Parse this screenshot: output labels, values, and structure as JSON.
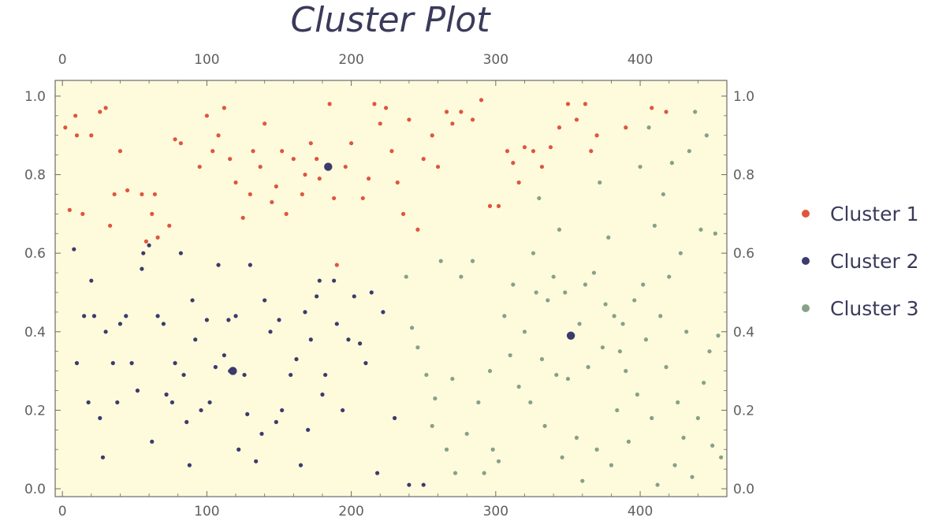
{
  "chart_data": {
    "type": "scatter",
    "title": "Cluster Plot",
    "xlabel": "",
    "ylabel": "",
    "xlim": [
      -5,
      460
    ],
    "ylim": [
      -0.02,
      1.04
    ],
    "x_ticks": [
      0,
      100,
      200,
      300,
      400
    ],
    "y_ticks": [
      "0.0",
      "0.2",
      "0.4",
      "0.6",
      "0.8",
      "1.0"
    ],
    "x_ticks_top": [
      0,
      100,
      200,
      300,
      400
    ],
    "y_ticks_right": [
      "0.0",
      "0.2",
      "0.4",
      "0.6",
      "0.8",
      "1.0"
    ],
    "grid": false,
    "legend_position": "right",
    "background_color": "#fdfbdc",
    "series": [
      {
        "name": "Cluster 1",
        "color": "#e0553f",
        "points": [
          [
            2,
            0.92
          ],
          [
            5,
            0.71
          ],
          [
            9,
            0.95
          ],
          [
            10,
            0.9
          ],
          [
            14,
            0.7
          ],
          [
            20,
            0.9
          ],
          [
            26,
            0.96
          ],
          [
            30,
            0.97
          ],
          [
            33,
            0.67
          ],
          [
            36,
            0.75
          ],
          [
            40,
            0.86
          ],
          [
            45,
            0.76
          ],
          [
            55,
            0.75
          ],
          [
            58,
            0.63
          ],
          [
            62,
            0.7
          ],
          [
            64,
            0.75
          ],
          [
            66,
            0.64
          ],
          [
            74,
            0.67
          ],
          [
            78,
            0.89
          ],
          [
            82,
            0.88
          ],
          [
            95,
            0.82
          ],
          [
            100,
            0.95
          ],
          [
            104,
            0.86
          ],
          [
            108,
            0.9
          ],
          [
            112,
            0.97
          ],
          [
            116,
            0.84
          ],
          [
            120,
            0.78
          ],
          [
            125,
            0.69
          ],
          [
            130,
            0.75
          ],
          [
            132,
            0.86
          ],
          [
            137,
            0.82
          ],
          [
            140,
            0.93
          ],
          [
            145,
            0.73
          ],
          [
            148,
            0.77
          ],
          [
            152,
            0.86
          ],
          [
            155,
            0.7
          ],
          [
            160,
            0.84
          ],
          [
            166,
            0.75
          ],
          [
            168,
            0.8
          ],
          [
            172,
            0.88
          ],
          [
            176,
            0.84
          ],
          [
            178,
            0.79
          ],
          [
            185,
            0.98
          ],
          [
            188,
            0.74
          ],
          [
            190,
            0.57
          ],
          [
            196,
            0.82
          ],
          [
            200,
            0.88
          ],
          [
            208,
            0.74
          ],
          [
            212,
            0.79
          ],
          [
            216,
            0.98
          ],
          [
            220,
            0.93
          ],
          [
            224,
            0.97
          ],
          [
            228,
            0.86
          ],
          [
            232,
            0.78
          ],
          [
            236,
            0.7
          ],
          [
            240,
            0.94
          ],
          [
            246,
            0.66
          ],
          [
            250,
            0.84
          ],
          [
            256,
            0.9
          ],
          [
            260,
            0.82
          ],
          [
            266,
            0.96
          ],
          [
            270,
            0.93
          ],
          [
            276,
            0.96
          ],
          [
            284,
            0.94
          ],
          [
            290,
            0.99
          ],
          [
            296,
            0.72
          ],
          [
            302,
            0.72
          ],
          [
            308,
            0.86
          ],
          [
            312,
            0.83
          ],
          [
            316,
            0.78
          ],
          [
            320,
            0.87
          ],
          [
            326,
            0.86
          ],
          [
            332,
            0.82
          ],
          [
            338,
            0.87
          ],
          [
            344,
            0.92
          ],
          [
            350,
            0.98
          ],
          [
            356,
            0.94
          ],
          [
            362,
            0.98
          ],
          [
            366,
            0.86
          ],
          [
            370,
            0.9
          ],
          [
            390,
            0.92
          ],
          [
            408,
            0.97
          ],
          [
            418,
            0.96
          ]
        ]
      },
      {
        "name": "Cluster 2",
        "color": "#3b3b6d",
        "points": [
          [
            8,
            0.61
          ],
          [
            10,
            0.32
          ],
          [
            15,
            0.44
          ],
          [
            18,
            0.22
          ],
          [
            20,
            0.53
          ],
          [
            22,
            0.44
          ],
          [
            26,
            0.18
          ],
          [
            28,
            0.08
          ],
          [
            30,
            0.4
          ],
          [
            35,
            0.32
          ],
          [
            38,
            0.22
          ],
          [
            40,
            0.42
          ],
          [
            44,
            0.44
          ],
          [
            48,
            0.32
          ],
          [
            52,
            0.25
          ],
          [
            55,
            0.56
          ],
          [
            56,
            0.6
          ],
          [
            60,
            0.62
          ],
          [
            62,
            0.12
          ],
          [
            66,
            0.44
          ],
          [
            70,
            0.42
          ],
          [
            72,
            0.24
          ],
          [
            76,
            0.22
          ],
          [
            78,
            0.32
          ],
          [
            82,
            0.6
          ],
          [
            84,
            0.29
          ],
          [
            86,
            0.17
          ],
          [
            88,
            0.06
          ],
          [
            90,
            0.48
          ],
          [
            92,
            0.38
          ],
          [
            96,
            0.2
          ],
          [
            100,
            0.43
          ],
          [
            102,
            0.22
          ],
          [
            106,
            0.31
          ],
          [
            108,
            0.57
          ],
          [
            112,
            0.34
          ],
          [
            115,
            0.43
          ],
          [
            116,
            0.3
          ],
          [
            120,
            0.44
          ],
          [
            122,
            0.1
          ],
          [
            126,
            0.29
          ],
          [
            128,
            0.19
          ],
          [
            130,
            0.57
          ],
          [
            134,
            0.07
          ],
          [
            138,
            0.14
          ],
          [
            140,
            0.48
          ],
          [
            144,
            0.4
          ],
          [
            148,
            0.17
          ],
          [
            150,
            0.43
          ],
          [
            152,
            0.2
          ],
          [
            158,
            0.29
          ],
          [
            162,
            0.33
          ],
          [
            165,
            0.06
          ],
          [
            168,
            0.45
          ],
          [
            170,
            0.15
          ],
          [
            172,
            0.38
          ],
          [
            176,
            0.49
          ],
          [
            178,
            0.53
          ],
          [
            180,
            0.24
          ],
          [
            182,
            0.29
          ],
          [
            185,
            0.82
          ],
          [
            188,
            0.53
          ],
          [
            190,
            0.42
          ],
          [
            194,
            0.2
          ],
          [
            198,
            0.38
          ],
          [
            202,
            0.49
          ],
          [
            206,
            0.37
          ],
          [
            210,
            0.32
          ],
          [
            214,
            0.5
          ],
          [
            218,
            0.04
          ],
          [
            222,
            0.45
          ],
          [
            230,
            0.18
          ],
          [
            240,
            0.01
          ],
          [
            250,
            0.01
          ]
        ],
        "centers": [
          [
            118,
            0.3
          ],
          [
            184,
            0.82
          ]
        ]
      },
      {
        "name": "Cluster 3",
        "color": "#87a08a",
        "points": [
          [
            238,
            0.54
          ],
          [
            242,
            0.41
          ],
          [
            246,
            0.36
          ],
          [
            252,
            0.29
          ],
          [
            256,
            0.16
          ],
          [
            258,
            0.23
          ],
          [
            262,
            0.58
          ],
          [
            266,
            0.1
          ],
          [
            270,
            0.28
          ],
          [
            272,
            0.04
          ],
          [
            276,
            0.54
          ],
          [
            280,
            0.14
          ],
          [
            284,
            0.58
          ],
          [
            288,
            0.22
          ],
          [
            292,
            0.04
          ],
          [
            296,
            0.3
          ],
          [
            298,
            0.1
          ],
          [
            302,
            0.07
          ],
          [
            306,
            0.44
          ],
          [
            310,
            0.34
          ],
          [
            312,
            0.52
          ],
          [
            316,
            0.26
          ],
          [
            320,
            0.4
          ],
          [
            324,
            0.22
          ],
          [
            326,
            0.6
          ],
          [
            328,
            0.5
          ],
          [
            330,
            0.74
          ],
          [
            332,
            0.33
          ],
          [
            334,
            0.16
          ],
          [
            336,
            0.48
          ],
          [
            340,
            0.54
          ],
          [
            342,
            0.29
          ],
          [
            344,
            0.66
          ],
          [
            346,
            0.08
          ],
          [
            348,
            0.5
          ],
          [
            350,
            0.28
          ],
          [
            352,
            0.39
          ],
          [
            356,
            0.13
          ],
          [
            358,
            0.42
          ],
          [
            360,
            0.02
          ],
          [
            362,
            0.52
          ],
          [
            364,
            0.31
          ],
          [
            368,
            0.55
          ],
          [
            370,
            0.1
          ],
          [
            372,
            0.78
          ],
          [
            374,
            0.36
          ],
          [
            376,
            0.47
          ],
          [
            378,
            0.64
          ],
          [
            380,
            0.06
          ],
          [
            382,
            0.44
          ],
          [
            384,
            0.2
          ],
          [
            386,
            0.35
          ],
          [
            388,
            0.42
          ],
          [
            390,
            0.3
          ],
          [
            392,
            0.12
          ],
          [
            396,
            0.48
          ],
          [
            398,
            0.24
          ],
          [
            400,
            0.82
          ],
          [
            402,
            0.52
          ],
          [
            404,
            0.38
          ],
          [
            406,
            0.92
          ],
          [
            408,
            0.18
          ],
          [
            410,
            0.67
          ],
          [
            412,
            0.01
          ],
          [
            414,
            0.44
          ],
          [
            416,
            0.75
          ],
          [
            418,
            0.31
          ],
          [
            420,
            0.54
          ],
          [
            422,
            0.83
          ],
          [
            424,
            0.06
          ],
          [
            426,
            0.22
          ],
          [
            428,
            0.6
          ],
          [
            430,
            0.13
          ],
          [
            432,
            0.4
          ],
          [
            434,
            0.86
          ],
          [
            436,
            0.03
          ],
          [
            438,
            0.96
          ],
          [
            440,
            0.18
          ],
          [
            442,
            0.66
          ],
          [
            444,
            0.27
          ],
          [
            446,
            0.9
          ],
          [
            448,
            0.35
          ],
          [
            450,
            0.11
          ],
          [
            452,
            0.65
          ],
          [
            454,
            0.39
          ],
          [
            456,
            0.08
          ]
        ],
        "centers": [
          [
            352,
            0.39
          ]
        ]
      }
    ]
  }
}
